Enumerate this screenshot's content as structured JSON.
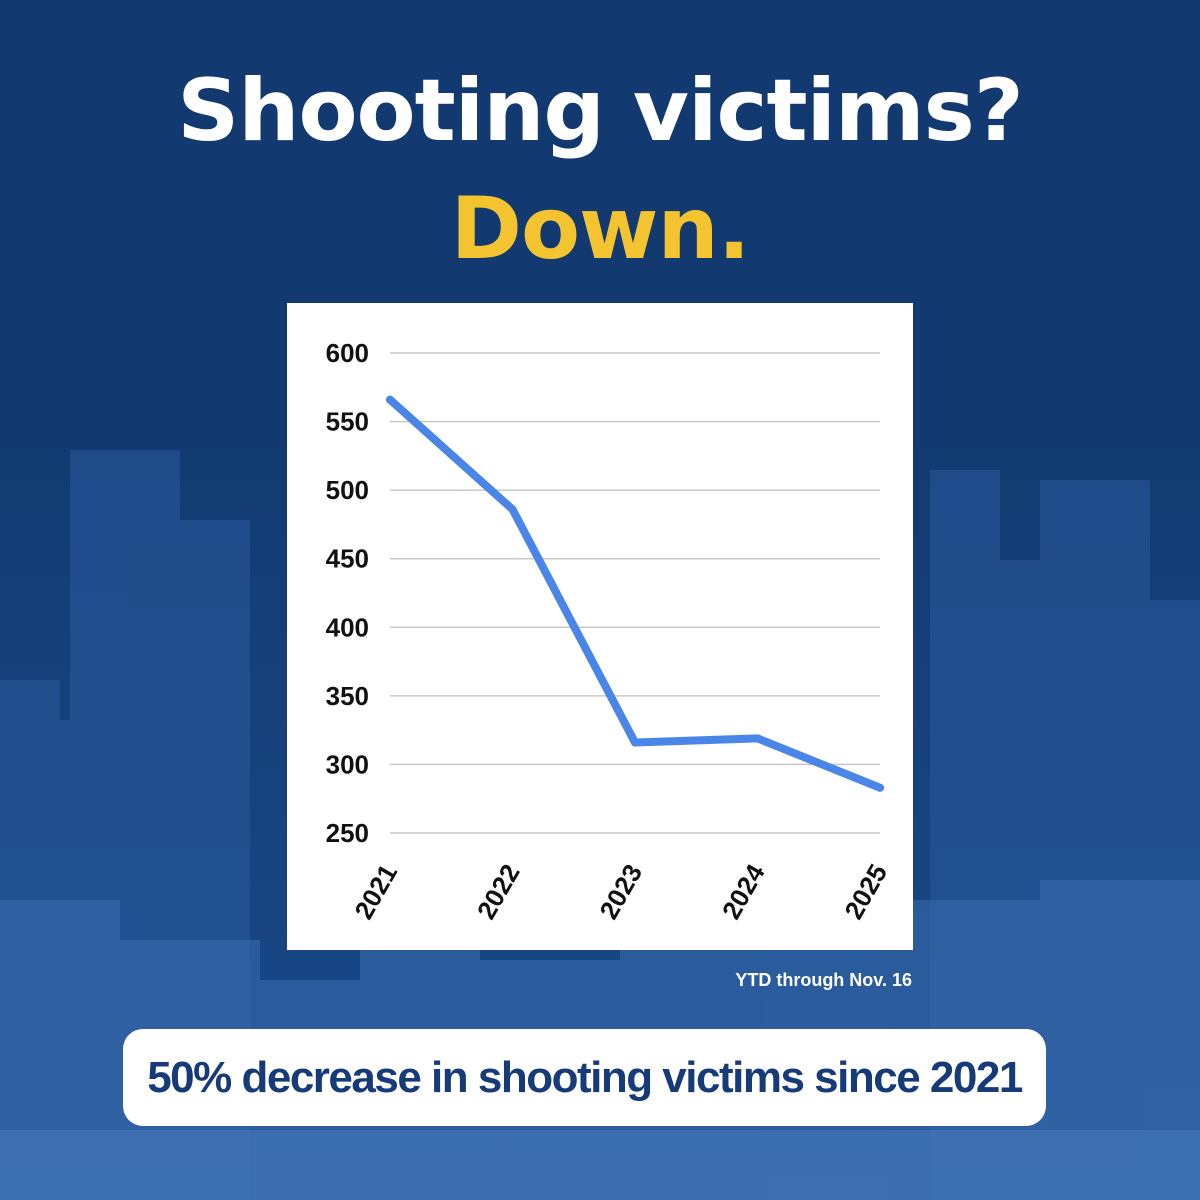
{
  "headline": {
    "line1": "Shooting victims?",
    "line2": "Down."
  },
  "colors": {
    "background": "#123a70",
    "accent_yellow": "#f4c430",
    "line": "#4a86e8",
    "banner_text": "#173a78"
  },
  "chart_data": {
    "type": "line",
    "x": [
      "2021",
      "2022",
      "2023",
      "2024",
      "2025"
    ],
    "series": [
      {
        "values": [
          566,
          486,
          316,
          319,
          283
        ]
      }
    ],
    "title": "",
    "xlabel": "",
    "ylabel": "",
    "ylim": [
      250,
      600
    ],
    "yticks": [
      "600",
      "550",
      "500",
      "450",
      "400",
      "350",
      "300",
      "250"
    ],
    "grid": true
  },
  "footnote": "YTD through Nov. 16",
  "banner": {
    "text": "50% decrease in shooting victims since 2021"
  }
}
